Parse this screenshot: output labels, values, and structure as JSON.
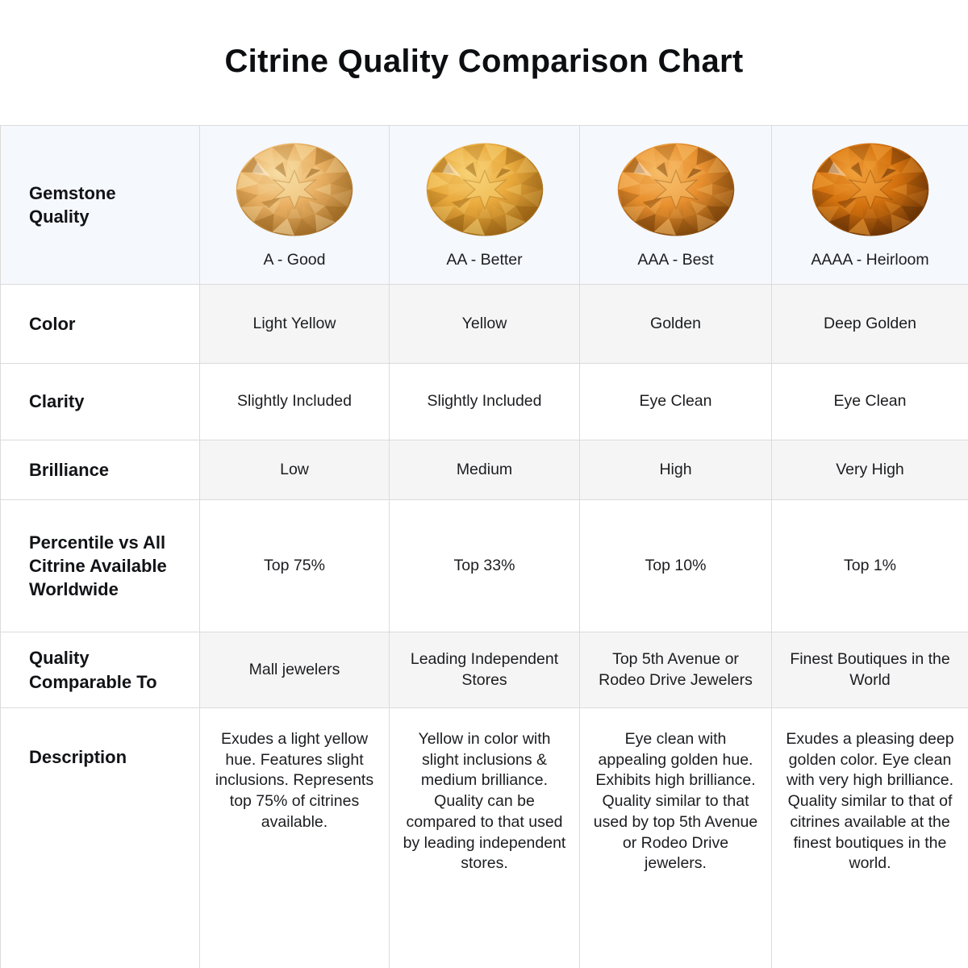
{
  "title": "Citrine Quality Comparison Chart",
  "colors": {
    "header_bg": "#f5f8fd",
    "shaded_row_bg": "#f5f5f5",
    "border": "#dbdbdb",
    "label_text": "#121316",
    "value_text": "#1c1d20"
  },
  "table": {
    "corner_label": "Gemstone Quality",
    "grades": [
      {
        "label": "A - Good",
        "gem": "citrine-light-yellow",
        "colors": {
          "light": "#f8dfa6",
          "base": "#e9b063",
          "dark": "#96621d"
        }
      },
      {
        "label": "AA - Better",
        "gem": "citrine-yellow",
        "colors": {
          "light": "#f8d378",
          "base": "#e9a93c",
          "dark": "#8f5a10"
        }
      },
      {
        "label": "AAA - Best",
        "gem": "citrine-golden",
        "colors": {
          "light": "#f8bf6b",
          "base": "#e8902f",
          "dark": "#713c06"
        }
      },
      {
        "label": "AAAA - Heirloom",
        "gem": "citrine-deep-golden",
        "colors": {
          "light": "#f2a23b",
          "base": "#d4720f",
          "dark": "#5c2b04"
        }
      }
    ],
    "rows": [
      {
        "label": "Color",
        "values": [
          "Light Yellow",
          "Yellow",
          "Golden",
          "Deep Golden"
        ]
      },
      {
        "label": "Clarity",
        "values": [
          "Slightly Included",
          "Slightly Included",
          "Eye Clean",
          "Eye Clean"
        ]
      },
      {
        "label": "Brilliance",
        "values": [
          "Low",
          "Medium",
          "High",
          "Very High"
        ]
      },
      {
        "label": "Percentile vs All Citrine Available Worldwide",
        "values": [
          "Top 75%",
          "Top 33%",
          "Top 10%",
          "Top 1%"
        ]
      },
      {
        "label": "Quality Comparable To",
        "values": [
          "Mall jewelers",
          "Leading Independent Stores",
          "Top 5th Avenue or Rodeo Drive Jewelers",
          "Finest Boutiques in the World"
        ]
      },
      {
        "label": "Description",
        "values": [
          "Exudes a light yellow hue. Features slight inclusions. Represents top 75% of citrines available.",
          "Yellow in color with slight inclusions & medium brilliance. Quality can be compared to that used by leading independent stores.",
          "Eye clean with appealing golden hue. Exhibits high brilliance. Quality similar to that used by top 5th Avenue or Rodeo Drive jewelers.",
          "Exudes a pleasing deep golden color. Eye clean with very high brilliance. Quality similar to that of citrines available at the finest boutiques in the world."
        ]
      }
    ]
  },
  "chart_data": {
    "type": "table",
    "title": "Citrine Quality Comparison Chart",
    "columns": [
      "A - Good",
      "AA - Better",
      "AAA - Best",
      "AAAA - Heirloom"
    ],
    "rows": [
      {
        "attribute": "Color",
        "values": [
          "Light Yellow",
          "Yellow",
          "Golden",
          "Deep Golden"
        ]
      },
      {
        "attribute": "Clarity",
        "values": [
          "Slightly Included",
          "Slightly Included",
          "Eye Clean",
          "Eye Clean"
        ]
      },
      {
        "attribute": "Brilliance",
        "values": [
          "Low",
          "Medium",
          "High",
          "Very High"
        ]
      },
      {
        "attribute": "Percentile vs All Citrine Available Worldwide",
        "values": [
          "Top 75%",
          "Top 33%",
          "Top 10%",
          "Top 1%"
        ]
      },
      {
        "attribute": "Quality Comparable To",
        "values": [
          "Mall jewelers",
          "Leading Independent Stores",
          "Top 5th Avenue or Rodeo Drive Jewelers",
          "Finest Boutiques in the World"
        ]
      }
    ]
  }
}
